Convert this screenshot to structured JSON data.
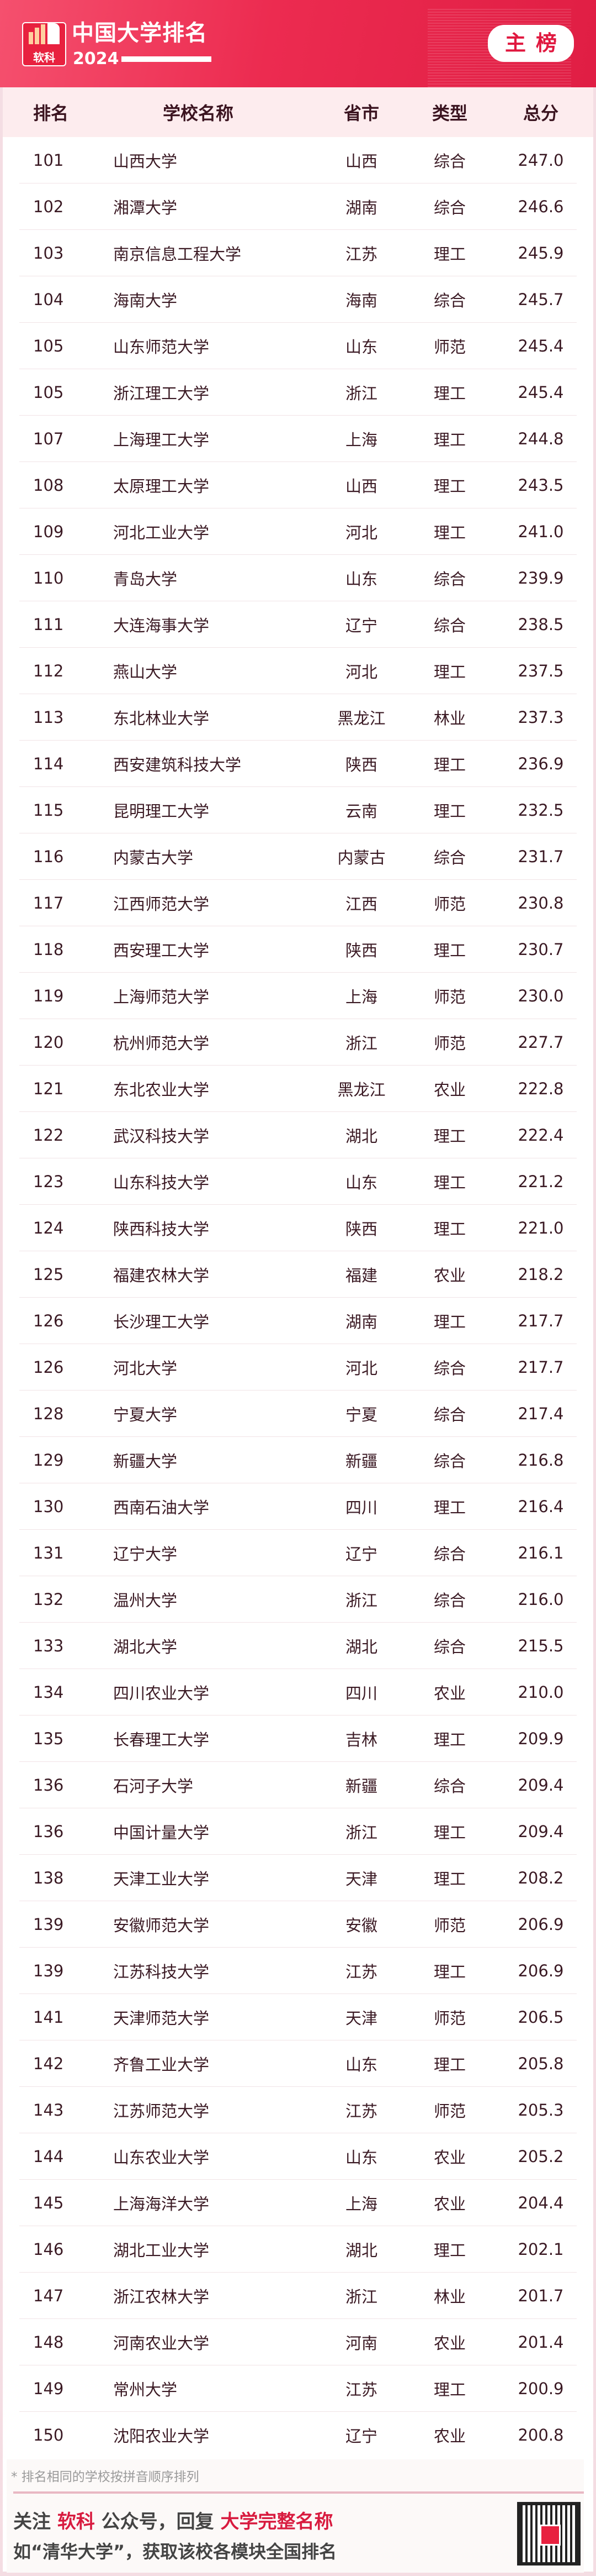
{
  "header": {
    "logo_text": "软科",
    "title": "中国大学排名",
    "year": "2024",
    "badge": "主榜",
    "accent_color": "#e8213f"
  },
  "table": {
    "columns": [
      "排名",
      "学校名称",
      "省市",
      "类型",
      "总分"
    ],
    "rows": [
      [
        "101",
        "山西大学",
        "山西",
        "综合",
        "247.0"
      ],
      [
        "102",
        "湘潭大学",
        "湖南",
        "综合",
        "246.6"
      ],
      [
        "103",
        "南京信息工程大学",
        "江苏",
        "理工",
        "245.9"
      ],
      [
        "104",
        "海南大学",
        "海南",
        "综合",
        "245.7"
      ],
      [
        "105",
        "山东师范大学",
        "山东",
        "师范",
        "245.4"
      ],
      [
        "105",
        "浙江理工大学",
        "浙江",
        "理工",
        "245.4"
      ],
      [
        "107",
        "上海理工大学",
        "上海",
        "理工",
        "244.8"
      ],
      [
        "108",
        "太原理工大学",
        "山西",
        "理工",
        "243.5"
      ],
      [
        "109",
        "河北工业大学",
        "河北",
        "理工",
        "241.0"
      ],
      [
        "110",
        "青岛大学",
        "山东",
        "综合",
        "239.9"
      ],
      [
        "111",
        "大连海事大学",
        "辽宁",
        "综合",
        "238.5"
      ],
      [
        "112",
        "燕山大学",
        "河北",
        "理工",
        "237.5"
      ],
      [
        "113",
        "东北林业大学",
        "黑龙江",
        "林业",
        "237.3"
      ],
      [
        "114",
        "西安建筑科技大学",
        "陕西",
        "理工",
        "236.9"
      ],
      [
        "115",
        "昆明理工大学",
        "云南",
        "理工",
        "232.5"
      ],
      [
        "116",
        "内蒙古大学",
        "内蒙古",
        "综合",
        "231.7"
      ],
      [
        "117",
        "江西师范大学",
        "江西",
        "师范",
        "230.8"
      ],
      [
        "118",
        "西安理工大学",
        "陕西",
        "理工",
        "230.7"
      ],
      [
        "119",
        "上海师范大学",
        "上海",
        "师范",
        "230.0"
      ],
      [
        "120",
        "杭州师范大学",
        "浙江",
        "师范",
        "227.7"
      ],
      [
        "121",
        "东北农业大学",
        "黑龙江",
        "农业",
        "222.8"
      ],
      [
        "122",
        "武汉科技大学",
        "湖北",
        "理工",
        "222.4"
      ],
      [
        "123",
        "山东科技大学",
        "山东",
        "理工",
        "221.2"
      ],
      [
        "124",
        "陕西科技大学",
        "陕西",
        "理工",
        "221.0"
      ],
      [
        "125",
        "福建农林大学",
        "福建",
        "农业",
        "218.2"
      ],
      [
        "126",
        "长沙理工大学",
        "湖南",
        "理工",
        "217.7"
      ],
      [
        "126",
        "河北大学",
        "河北",
        "综合",
        "217.7"
      ],
      [
        "128",
        "宁夏大学",
        "宁夏",
        "综合",
        "217.4"
      ],
      [
        "129",
        "新疆大学",
        "新疆",
        "综合",
        "216.8"
      ],
      [
        "130",
        "西南石油大学",
        "四川",
        "理工",
        "216.4"
      ],
      [
        "131",
        "辽宁大学",
        "辽宁",
        "综合",
        "216.1"
      ],
      [
        "132",
        "温州大学",
        "浙江",
        "综合",
        "216.0"
      ],
      [
        "133",
        "湖北大学",
        "湖北",
        "综合",
        "215.5"
      ],
      [
        "134",
        "四川农业大学",
        "四川",
        "农业",
        "210.0"
      ],
      [
        "135",
        "长春理工大学",
        "吉林",
        "理工",
        "209.9"
      ],
      [
        "136",
        "石河子大学",
        "新疆",
        "综合",
        "209.4"
      ],
      [
        "136",
        "中国计量大学",
        "浙江",
        "理工",
        "209.4"
      ],
      [
        "138",
        "天津工业大学",
        "天津",
        "理工",
        "208.2"
      ],
      [
        "139",
        "安徽师范大学",
        "安徽",
        "师范",
        "206.9"
      ],
      [
        "139",
        "江苏科技大学",
        "江苏",
        "理工",
        "206.9"
      ],
      [
        "141",
        "天津师范大学",
        "天津",
        "师范",
        "206.5"
      ],
      [
        "142",
        "齐鲁工业大学",
        "山东",
        "理工",
        "205.8"
      ],
      [
        "143",
        "江苏师范大学",
        "江苏",
        "师范",
        "205.3"
      ],
      [
        "144",
        "山东农业大学",
        "山东",
        "农业",
        "205.2"
      ],
      [
        "145",
        "上海海洋大学",
        "上海",
        "农业",
        "204.4"
      ],
      [
        "146",
        "湖北工业大学",
        "湖北",
        "理工",
        "202.1"
      ],
      [
        "147",
        "浙江农林大学",
        "浙江",
        "林业",
        "201.7"
      ],
      [
        "148",
        "河南农业大学",
        "河南",
        "农业",
        "201.4"
      ],
      [
        "149",
        "常州大学",
        "江苏",
        "理工",
        "200.9"
      ],
      [
        "150",
        "沈阳农业大学",
        "辽宁",
        "农业",
        "200.8"
      ]
    ]
  },
  "footer": {
    "note": "* 排名相同的学校按拼音顺序排列",
    "l1_a": "关注 ",
    "l1_b": "软科",
    "l1_c": " 公众号，回复 ",
    "l1_d": "大学完整名称",
    "l2": "如“清华大学”，获取该校各模块全国排名"
  }
}
